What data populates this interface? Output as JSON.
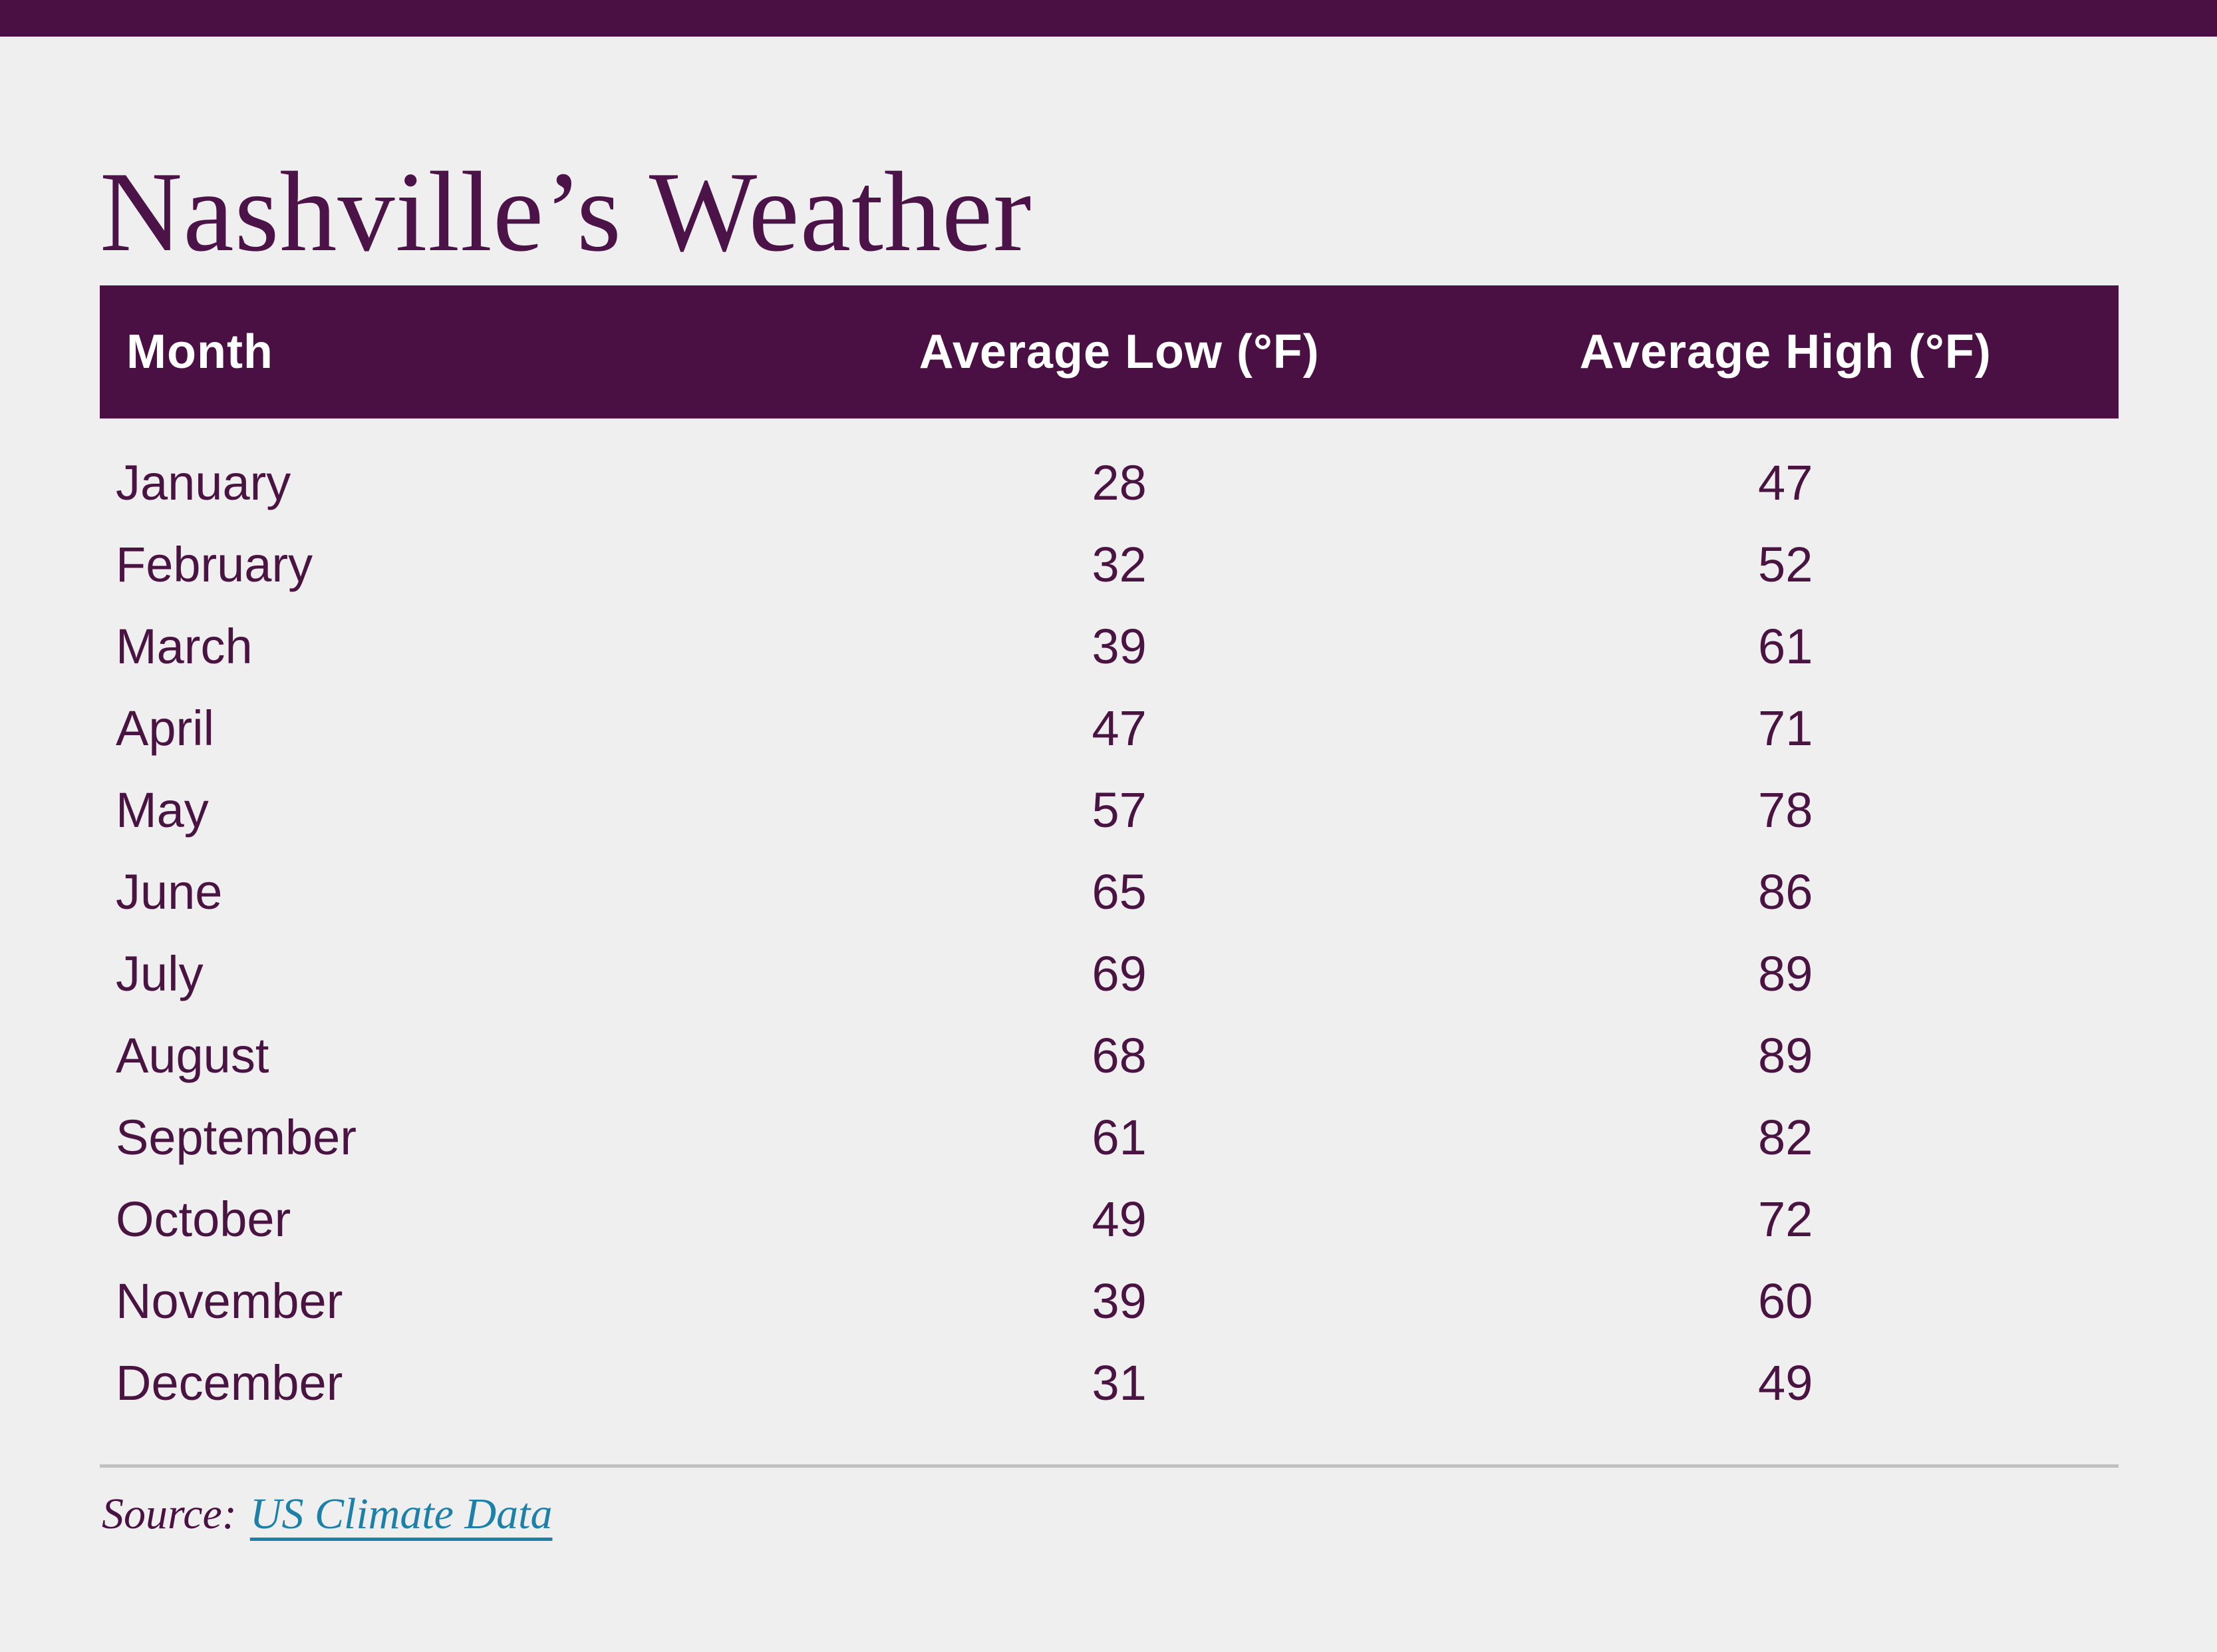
{
  "page": {
    "background": "#f0eff0",
    "accent_purple": "#4a1043",
    "text_plum": "#4a1442",
    "link_teal": "#1d80a8"
  },
  "title": "Nashville’s Weather",
  "table": {
    "columns": [
      "Month",
      "Average Low (°F)",
      "Average High (°F)"
    ],
    "rows": [
      {
        "month": "January",
        "low": "28",
        "high": "47"
      },
      {
        "month": "February",
        "low": "32",
        "high": "52"
      },
      {
        "month": "March",
        "low": "39",
        "high": "61"
      },
      {
        "month": "April",
        "low": "47",
        "high": "71"
      },
      {
        "month": "May",
        "low": "57",
        "high": "78"
      },
      {
        "month": "June",
        "low": "65",
        "high": "86"
      },
      {
        "month": "July",
        "low": "69",
        "high": "89"
      },
      {
        "month": "August",
        "low": "68",
        "high": "89"
      },
      {
        "month": "September",
        "low": "61",
        "high": "82"
      },
      {
        "month": "October",
        "low": "49",
        "high": "72"
      },
      {
        "month": "November",
        "low": "39",
        "high": "60"
      },
      {
        "month": "December",
        "low": "31",
        "high": "49"
      }
    ]
  },
  "footer": {
    "source_label": "Source:",
    "link_text": "US Climate Data"
  },
  "chart_data": {
    "type": "table",
    "title": "Nashville’s Weather",
    "categories": [
      "January",
      "February",
      "March",
      "April",
      "May",
      "June",
      "July",
      "August",
      "September",
      "October",
      "November",
      "December"
    ],
    "series": [
      {
        "name": "Average Low (°F)",
        "values": [
          28,
          32,
          39,
          47,
          57,
          65,
          69,
          68,
          61,
          49,
          39,
          31
        ]
      },
      {
        "name": "Average High (°F)",
        "values": [
          47,
          52,
          61,
          71,
          78,
          86,
          89,
          89,
          82,
          72,
          60,
          49
        ]
      }
    ],
    "source": "US Climate Data"
  }
}
